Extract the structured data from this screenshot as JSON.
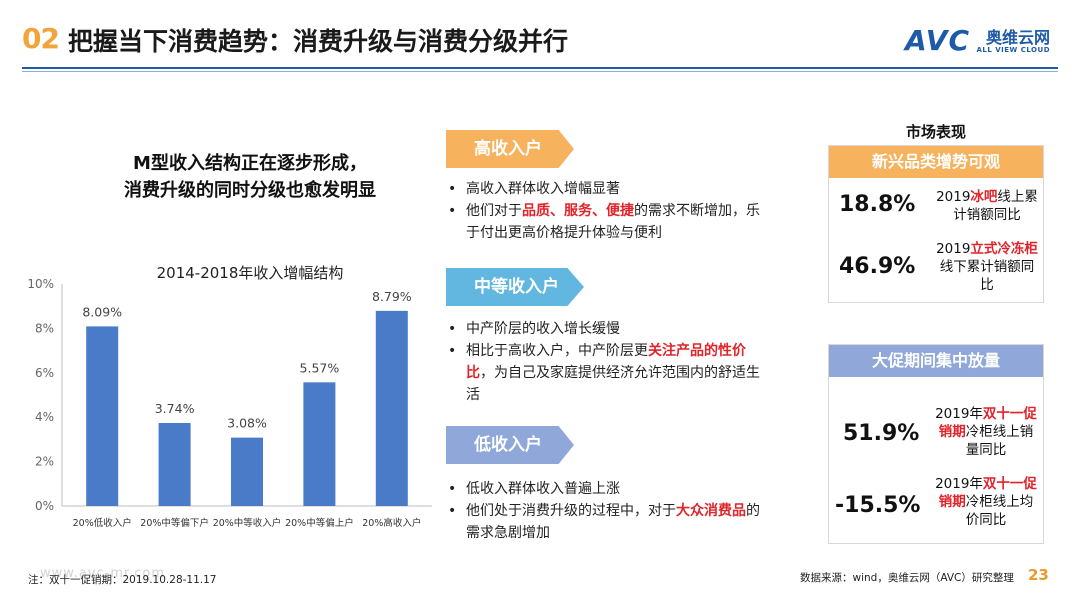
{
  "header": {
    "number": "02",
    "title": "把握当下消费趋势：消费升级与消费分级并行",
    "logo_text": "AVC",
    "logo_cn": "奥维云网",
    "logo_en": "ALL VIEW CLOUD"
  },
  "headline": {
    "line1": "M型收入结构正在逐步形成，",
    "line2": "消费升级的同时分级也愈发明显"
  },
  "chart_data": {
    "type": "bar",
    "title": "2014-2018年收入增幅结构",
    "categories": [
      "20%低收入户",
      "20%中等偏下户",
      "20%中等收入户",
      "20%中等偏上户",
      "20%高收入户"
    ],
    "values": [
      8.09,
      3.74,
      3.08,
      5.57,
      8.79
    ],
    "data_labels": [
      "8.09%",
      "3.74%",
      "3.08%",
      "5.57%",
      "8.79%"
    ],
    "y_ticks": [
      "0%",
      "2%",
      "4%",
      "6%",
      "8%",
      "10%"
    ],
    "ylim": [
      0,
      10
    ],
    "bar_color": "#4A7BC8",
    "grid": false,
    "legend": "none"
  },
  "sections": {
    "high": {
      "tag": "高收入户",
      "b1": "高收入群体收入增幅显著",
      "b2_pre": "他们对于",
      "b2_hl": "品质、服务、便捷",
      "b2_post": "的需求不断增加，乐于付出更高价格提升体验与便利"
    },
    "mid": {
      "tag": "中等收入户",
      "b1": "中产阶层的收入增长缓慢",
      "b2_pre": "相比于高收入户，中产阶层更",
      "b2_hl": "关注产品的性价比",
      "b2_post": "，为自己及家庭提供经济允许范围内的舒适生活"
    },
    "low": {
      "tag": "低收入户",
      "b1": "低收入群体收入普遍上涨",
      "b2_pre": "他们处于消费升级的过程中，对于",
      "b2_hl": "大众消费品",
      "b2_post": "的需求急剧增加"
    }
  },
  "market": {
    "title": "市场表现",
    "panel1": {
      "head": "新兴品类增势可观",
      "stat1": "18.8%",
      "desc1_pre": "2019",
      "desc1_hl": "冰吧",
      "desc1_post": "线上累计销额同比",
      "stat2": "46.9%",
      "desc2_pre": "2019",
      "desc2_hl": "立式冷冻柜",
      "desc2_post": "线下累计销额同比"
    },
    "panel2": {
      "head": "大促期间集中放量",
      "stat1": "51.9%",
      "desc1_pre": "2019年",
      "desc1_hl": "双十一促销期",
      "desc1_post": "冷柜线上销量同比",
      "stat2": "-15.5%",
      "desc2_pre": "2019年",
      "desc2_hl": "双十一促销期",
      "desc2_post": "冷柜线上均价同比"
    }
  },
  "footer": {
    "note": "注：双十一促销期：2019.10.28-11.17",
    "source": "数据来源：wind，奥维云网（AVC）研究整理",
    "page": "23",
    "watermark": "www.avc-mr.com"
  }
}
